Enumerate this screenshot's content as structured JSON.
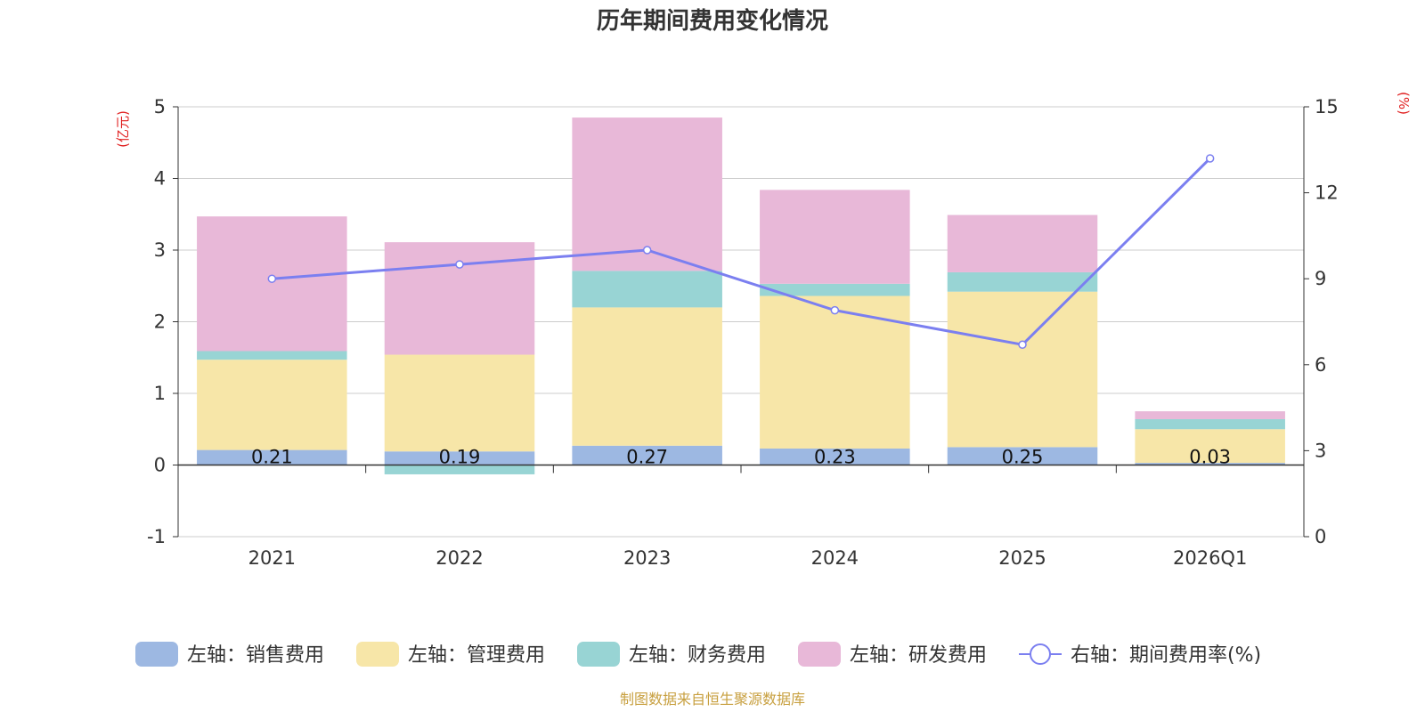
{
  "chart_data": {
    "type": "bar",
    "stacked": true,
    "title": "历年期间费用变化情况",
    "categories": [
      "2021",
      "2022",
      "2023",
      "2024",
      "2025",
      "2026Q1"
    ],
    "left_axis": {
      "unit": "(亿元)",
      "ylim": [
        -1,
        5
      ],
      "ticks": [
        -1,
        0,
        1,
        2,
        3,
        4,
        5
      ]
    },
    "right_axis": {
      "unit": "(%)",
      "ylim": [
        0,
        15
      ],
      "ticks": [
        0,
        3,
        6,
        9,
        12,
        15
      ]
    },
    "series": [
      {
        "name": "左轴：销售费用",
        "type": "bar",
        "axis": "left",
        "color": "#9db8e2",
        "values": [
          0.21,
          0.19,
          0.27,
          0.23,
          0.25,
          0.03
        ]
      },
      {
        "name": "左轴：管理费用",
        "type": "bar",
        "axis": "left",
        "color": "#f7e6a8",
        "values": [
          1.26,
          1.35,
          1.93,
          2.13,
          2.17,
          0.47
        ]
      },
      {
        "name": "左轴：财务费用",
        "type": "bar",
        "axis": "left",
        "color": "#98d4d4",
        "values": [
          0.12,
          -0.13,
          0.51,
          0.17,
          0.27,
          0.14
        ]
      },
      {
        "name": "左轴：研发费用",
        "type": "bar",
        "axis": "left",
        "color": "#e8b8d8",
        "values": [
          1.88,
          1.57,
          2.14,
          1.31,
          0.8,
          0.11
        ]
      },
      {
        "name": "右轴：期间费用率(%)",
        "type": "line",
        "axis": "right",
        "color": "#7b7ff0",
        "values": [
          9.0,
          9.5,
          10.0,
          7.9,
          6.7,
          13.2
        ]
      }
    ],
    "data_labels": [
      "0.21",
      "0.19",
      "0.27",
      "0.23",
      "0.25",
      "0.03"
    ],
    "legend_position": "bottom",
    "source": "制图数据来自恒生聚源数据库"
  }
}
